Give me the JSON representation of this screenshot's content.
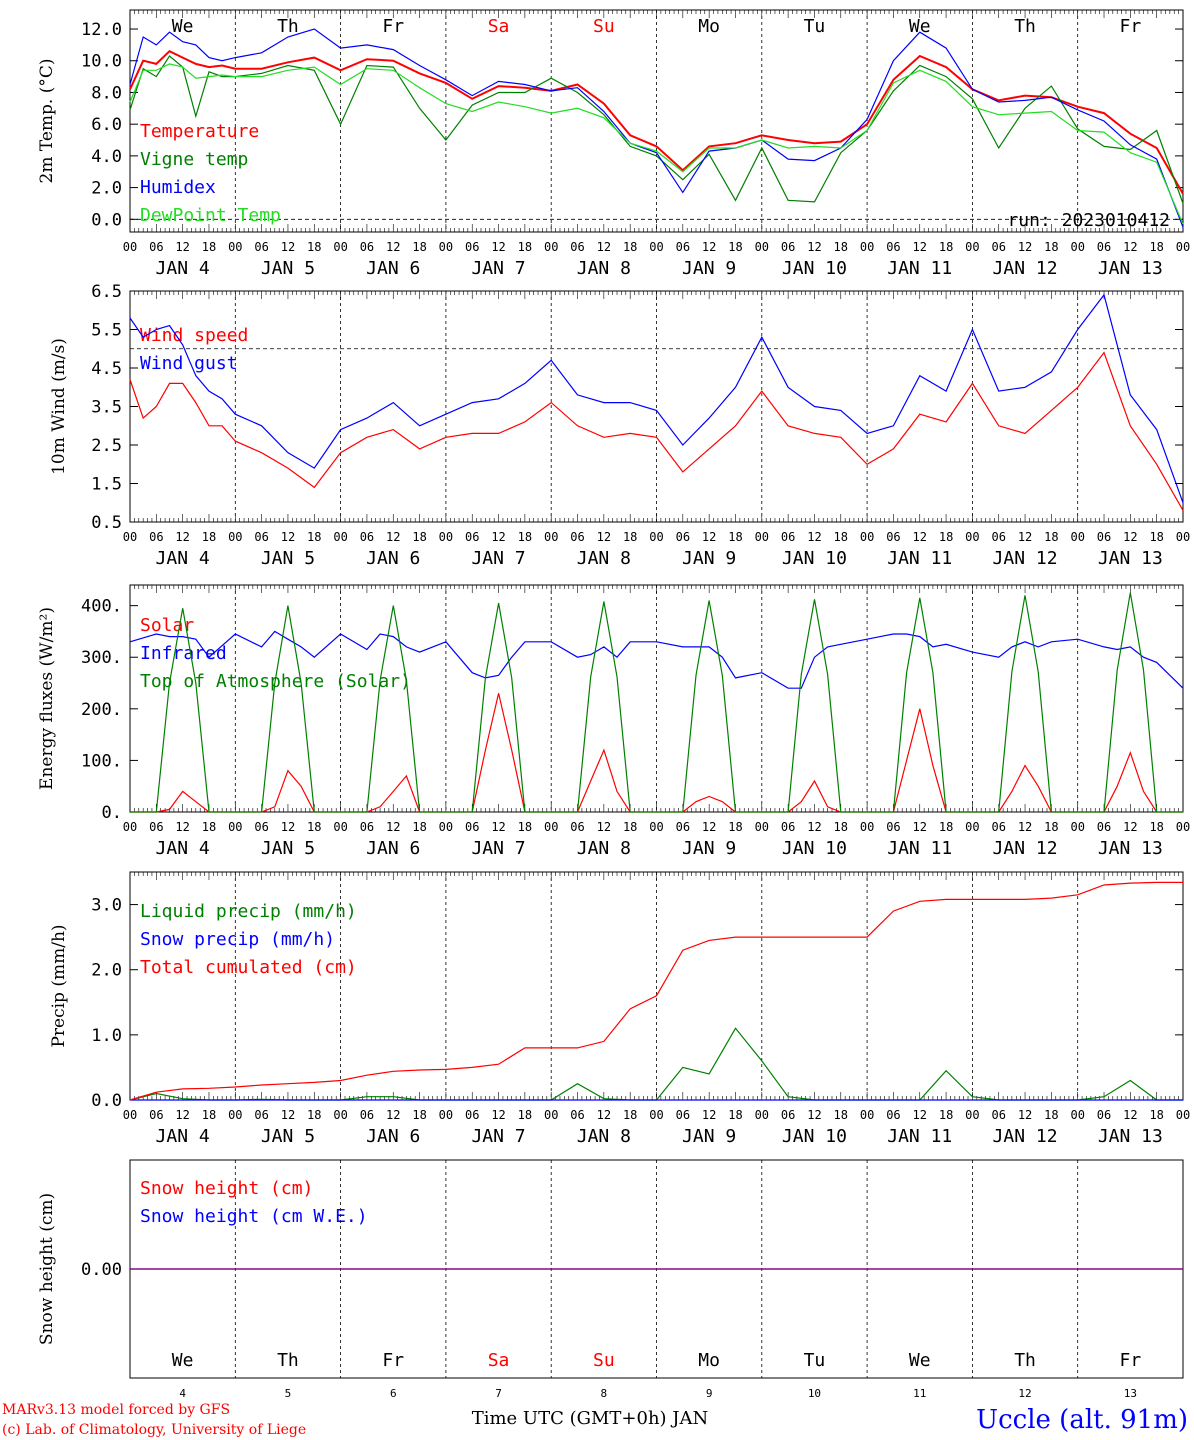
{
  "run": "run: 2023010412",
  "location": "Uccle (alt. 91m)",
  "footer_model": "MARv3.13 model forced by GFS",
  "footer_copyright": "(c) Lab. of Climatology, University of Liege",
  "xlabel": "Time UTC (GMT+0h) JAN",
  "days": [
    "We",
    "Th",
    "Fr",
    "Sa",
    "Su",
    "Mo",
    "Tu",
    "We",
    "Th",
    "Fr"
  ],
  "weekend_days": [
    "Sa",
    "Su"
  ],
  "dates": [
    "JAN  4",
    "JAN  5",
    "JAN  6",
    "JAN  7",
    "JAN  8",
    "JAN  9",
    "JAN 10",
    "JAN 11",
    "JAN 12",
    "JAN 13"
  ],
  "day_numbers": [
    "4",
    "5",
    "6",
    "7",
    "8",
    "9",
    "10",
    "11",
    "12",
    "13"
  ],
  "hour_ticks": [
    "00",
    "06",
    "12",
    "18"
  ],
  "colors": {
    "red": "#ff0000",
    "green": "#008000",
    "blue": "#0000ff",
    "lightgreen": "#22dd22",
    "purple": "#800080",
    "weekend": "#ff0000"
  },
  "chart_data": [
    {
      "type": "line",
      "ylabel": "2m Temp. (°C)",
      "ylim": [
        -0.8,
        13.2
      ],
      "yticks": [
        "0.0",
        "2.0",
        "4.0",
        "6.0",
        "8.0",
        "10.0",
        "12.0"
      ],
      "ytick_values": [
        0,
        2,
        4,
        6,
        8,
        10,
        12
      ],
      "dashed_y": [
        0
      ],
      "x_hours": [
        0,
        3,
        6,
        9,
        12,
        15,
        18,
        21,
        24,
        30,
        36,
        42,
        48,
        54,
        60,
        66,
        72,
        78,
        84,
        90,
        96,
        102,
        108,
        114,
        120,
        126,
        132,
        138,
        144,
        150,
        156,
        162,
        168,
        174,
        180,
        186,
        192,
        198,
        204,
        210,
        216,
        222,
        228,
        234,
        240
      ],
      "series": [
        {
          "name": "Temperature",
          "color": "#ff0000",
          "values": [
            8.2,
            10.0,
            9.8,
            10.6,
            10.2,
            9.8,
            9.6,
            9.7,
            9.5,
            9.5,
            9.9,
            10.2,
            9.4,
            10.1,
            10.0,
            9.2,
            8.6,
            7.6,
            8.4,
            8.3,
            8.1,
            8.5,
            7.3,
            5.3,
            4.6,
            3.1,
            4.6,
            4.8,
            5.3,
            5.0,
            4.8,
            4.9,
            6.0,
            8.8,
            10.3,
            9.6,
            8.2,
            7.5,
            7.8,
            7.7,
            7.1,
            6.7,
            5.4,
            4.5,
            1.6
          ]
        },
        {
          "name": "Vigne temp",
          "color": "#008000",
          "values": [
            6.9,
            9.5,
            9.0,
            10.3,
            9.6,
            6.5,
            9.3,
            9.0,
            9.0,
            9.2,
            9.7,
            9.4,
            6.0,
            9.7,
            9.6,
            7.0,
            5.0,
            7.2,
            8.0,
            8.0,
            8.9,
            8.0,
            6.6,
            4.6,
            4.0,
            2.5,
            4.1,
            1.2,
            4.5,
            1.2,
            1.1,
            4.2,
            5.6,
            8.1,
            9.7,
            9.0,
            7.6,
            4.5,
            7.0,
            8.4,
            5.7,
            4.6,
            4.4,
            5.6,
            1.0
          ]
        },
        {
          "name": "Humidex",
          "color": "#0000ff",
          "values": [
            8.5,
            11.5,
            11.0,
            11.8,
            11.2,
            11.0,
            10.2,
            10.0,
            10.2,
            10.5,
            11.5,
            12.0,
            10.8,
            11.0,
            10.7,
            9.7,
            8.8,
            7.8,
            8.7,
            8.5,
            8.1,
            8.3,
            6.8,
            4.8,
            4.2,
            1.7,
            4.3,
            4.5,
            5.0,
            3.8,
            3.7,
            4.5,
            6.3,
            10.0,
            11.8,
            10.8,
            8.2,
            7.4,
            7.5,
            7.7,
            6.9,
            6.2,
            4.7,
            3.8,
            -0.5
          ]
        },
        {
          "name": "DewPoint Temp",
          "color": "#22dd22",
          "values": [
            7.4,
            9.4,
            9.4,
            9.8,
            9.6,
            8.9,
            9.0,
            9.1,
            9.0,
            9.0,
            9.4,
            9.6,
            8.5,
            9.5,
            9.4,
            8.3,
            7.3,
            6.8,
            7.4,
            7.1,
            6.7,
            7.0,
            6.4,
            4.8,
            4.3,
            3.0,
            4.5,
            4.5,
            5.0,
            4.5,
            4.6,
            4.5,
            5.6,
            8.6,
            9.4,
            8.7,
            7.1,
            6.6,
            6.7,
            6.8,
            5.6,
            5.5,
            4.2,
            3.6,
            -0.3
          ]
        }
      ]
    },
    {
      "type": "line",
      "ylabel": "10m Wind (m/s)",
      "ylim": [
        0.5,
        6.5
      ],
      "yticks": [
        "0.5",
        "1.5",
        "2.5",
        "3.5",
        "4.5",
        "5.5",
        "6.5"
      ],
      "ytick_values": [
        0.5,
        1.5,
        2.5,
        3.5,
        4.5,
        5.5,
        6.5
      ],
      "dashed_y": [
        5.0
      ],
      "x_hours": [
        0,
        3,
        6,
        9,
        12,
        15,
        18,
        21,
        24,
        30,
        36,
        42,
        48,
        54,
        60,
        66,
        72,
        78,
        84,
        90,
        96,
        102,
        108,
        114,
        120,
        126,
        132,
        138,
        144,
        150,
        156,
        162,
        168,
        174,
        180,
        186,
        192,
        198,
        204,
        210,
        216,
        222,
        228,
        234,
        240
      ],
      "series": [
        {
          "name": "Wind speed",
          "color": "#ff0000",
          "values": [
            4.2,
            3.2,
            3.5,
            4.1,
            4.1,
            3.6,
            3.0,
            3.0,
            2.6,
            2.3,
            1.9,
            1.4,
            2.3,
            2.7,
            2.9,
            2.4,
            2.7,
            2.8,
            2.8,
            3.1,
            3.6,
            3.0,
            2.7,
            2.8,
            2.7,
            1.8,
            2.4,
            3.0,
            3.9,
            3.0,
            2.8,
            2.7,
            2.0,
            2.4,
            3.3,
            3.1,
            4.1,
            3.0,
            2.8,
            3.4,
            4.0,
            4.9,
            3.0,
            2.0,
            0.8
          ]
        },
        {
          "name": "Wind gust",
          "color": "#0000ff",
          "values": [
            5.8,
            5.3,
            5.5,
            5.6,
            5.1,
            4.3,
            3.9,
            3.7,
            3.3,
            3.0,
            2.3,
            1.9,
            2.9,
            3.2,
            3.6,
            3.0,
            3.3,
            3.6,
            3.7,
            4.1,
            4.7,
            3.8,
            3.6,
            3.6,
            3.4,
            2.5,
            3.2,
            4.0,
            5.3,
            4.0,
            3.5,
            3.4,
            2.8,
            3.0,
            4.3,
            3.9,
            5.5,
            3.9,
            4.0,
            4.4,
            5.5,
            6.4,
            3.8,
            2.9,
            1.0
          ]
        }
      ]
    },
    {
      "type": "line",
      "ylabel": "Energy fluxes (W/m²)",
      "ylim": [
        0,
        440
      ],
      "yticks": [
        "0.",
        "100.",
        "200.",
        "300.",
        "400."
      ],
      "ytick_values": [
        0,
        100,
        200,
        300,
        400
      ],
      "x_hours": [
        0,
        6,
        9,
        12,
        15,
        18,
        24,
        30,
        33,
        36,
        39,
        42,
        48,
        54,
        57,
        60,
        63,
        66,
        72,
        78,
        81,
        84,
        87,
        90,
        96,
        102,
        105,
        108,
        111,
        114,
        120,
        126,
        129,
        132,
        135,
        138,
        144,
        150,
        153,
        156,
        159,
        162,
        168,
        174,
        177,
        180,
        183,
        186,
        192,
        198,
        201,
        204,
        207,
        210,
        216,
        222,
        225,
        228,
        231,
        234,
        240
      ],
      "series": [
        {
          "name": "Solar",
          "color": "#ff0000",
          "values": [
            0,
            0,
            5,
            40,
            20,
            0,
            0,
            0,
            10,
            80,
            50,
            0,
            0,
            0,
            10,
            40,
            70,
            0,
            0,
            0,
            120,
            230,
            120,
            0,
            0,
            0,
            60,
            120,
            40,
            0,
            0,
            0,
            20,
            30,
            20,
            0,
            0,
            0,
            20,
            60,
            10,
            0,
            0,
            0,
            100,
            200,
            90,
            0,
            0,
            0,
            40,
            90,
            50,
            0,
            0,
            0,
            50,
            115,
            40,
            0,
            0
          ]
        },
        {
          "name": "Infrared",
          "color": "#0000ff",
          "values": [
            330,
            345,
            340,
            340,
            335,
            300,
            345,
            320,
            350,
            335,
            320,
            300,
            345,
            315,
            345,
            340,
            320,
            310,
            330,
            270,
            260,
            265,
            300,
            330,
            330,
            300,
            305,
            320,
            300,
            330,
            330,
            320,
            320,
            320,
            300,
            260,
            270,
            240,
            240,
            300,
            320,
            325,
            335,
            345,
            345,
            340,
            320,
            325,
            310,
            300,
            320,
            330,
            320,
            330,
            335,
            320,
            315,
            320,
            300,
            290,
            240
          ]
        },
        {
          "name": "Top of Atmosphere (Solar)",
          "color": "#008000",
          "values": [
            0,
            0,
            250,
            395,
            250,
            0,
            0,
            0,
            250,
            400,
            250,
            0,
            0,
            0,
            255,
            400,
            255,
            0,
            0,
            0,
            260,
            405,
            260,
            0,
            0,
            0,
            262,
            408,
            262,
            0,
            0,
            0,
            265,
            410,
            265,
            0,
            0,
            0,
            267,
            412,
            267,
            0,
            0,
            0,
            270,
            415,
            270,
            0,
            0,
            0,
            272,
            420,
            272,
            0,
            0,
            0,
            275,
            425,
            275,
            0,
            0
          ]
        }
      ]
    },
    {
      "type": "line",
      "ylabel": "Precip (mm/h)",
      "ylim": [
        0,
        3.5
      ],
      "yticks": [
        "0.0",
        "1.0",
        "2.0",
        "3.0"
      ],
      "ytick_values": [
        0,
        1,
        2,
        3
      ],
      "x_hours": [
        0,
        6,
        12,
        18,
        24,
        30,
        36,
        42,
        48,
        54,
        60,
        66,
        72,
        78,
        84,
        90,
        96,
        102,
        108,
        114,
        120,
        126,
        132,
        138,
        144,
        150,
        156,
        162,
        168,
        174,
        180,
        186,
        192,
        198,
        204,
        210,
        216,
        222,
        228,
        234,
        240
      ],
      "series": [
        {
          "name": "Liquid precip (mm/h)",
          "color": "#008000",
          "values": [
            0.0,
            0.1,
            0.02,
            0.0,
            0.0,
            0.01,
            0.0,
            0.0,
            0.0,
            0.05,
            0.05,
            0.0,
            0.0,
            0.0,
            0.0,
            0.0,
            0.0,
            0.25,
            0.02,
            0.0,
            0.0,
            0.5,
            0.4,
            1.1,
            0.6,
            0.05,
            0.0,
            0.0,
            0.0,
            0.0,
            0.0,
            0.45,
            0.05,
            0.0,
            0.0,
            0.0,
            0.0,
            0.05,
            0.3,
            0.0,
            0.0
          ]
        },
        {
          "name": "Snow precip (mm/h)",
          "color": "#0000ff",
          "values": [
            0,
            0,
            0,
            0,
            0,
            0,
            0,
            0,
            0,
            0,
            0,
            0,
            0,
            0,
            0,
            0,
            0,
            0,
            0,
            0,
            0,
            0,
            0,
            0,
            0,
            0,
            0,
            0,
            0,
            0,
            0,
            0,
            0,
            0,
            0,
            0,
            0,
            0,
            0,
            0,
            0
          ]
        },
        {
          "name": "Total cumulated (cm)",
          "color": "#ff0000",
          "values": [
            0.0,
            0.12,
            0.17,
            0.18,
            0.2,
            0.23,
            0.25,
            0.27,
            0.3,
            0.38,
            0.44,
            0.46,
            0.47,
            0.5,
            0.55,
            0.8,
            0.8,
            0.8,
            0.9,
            1.4,
            1.6,
            2.3,
            2.45,
            2.5,
            2.5,
            2.5,
            2.5,
            2.5,
            2.5,
            2.9,
            3.05,
            3.08,
            3.08,
            3.08,
            3.08,
            3.1,
            3.15,
            3.3,
            3.33,
            3.34,
            3.34
          ]
        }
      ]
    },
    {
      "type": "line",
      "ylabel": "Snow height (cm)",
      "ylim": [
        -1,
        1
      ],
      "yticks": [
        "0.00"
      ],
      "ytick_values": [
        0
      ],
      "x_hours": [
        0,
        240
      ],
      "series": [
        {
          "name": "Snow height (cm)",
          "color": "#ff0000",
          "values": [
            0,
            0
          ]
        },
        {
          "name": "Snow height (cm W.E.)",
          "color": "#0000ff",
          "values": [
            0,
            0
          ]
        }
      ]
    }
  ]
}
